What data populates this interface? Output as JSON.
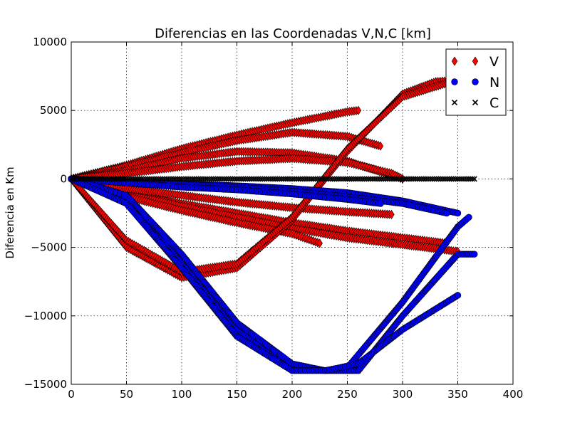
{
  "chart_data": {
    "type": "scatter",
    "title": "Diferencias en las Coordenadas V,N,C [km]",
    "xlabel": "",
    "ylabel": "Diferencia en Km",
    "xlim": [
      0,
      400
    ],
    "ylim": [
      -15000,
      10000
    ],
    "xticks": [
      0,
      50,
      100,
      150,
      200,
      250,
      300,
      350,
      400
    ],
    "yticks": [
      -15000,
      -10000,
      -5000,
      0,
      5000,
      10000
    ],
    "xtick_labels": [
      "0",
      "50",
      "100",
      "150",
      "200",
      "250",
      "300",
      "350",
      "400"
    ],
    "ytick_labels": [
      "−15000",
      "−10000",
      "−5000",
      "0",
      "5000",
      "10000"
    ],
    "grid": true,
    "legend_position": "top-right",
    "series": [
      {
        "name": "V",
        "marker": "diamond",
        "color": "#ff0000",
        "traces": [
          {
            "x": [
              0,
              50,
              100,
              150,
              200,
              250,
              260
            ],
            "y": [
              0,
              1000,
              2200,
              3200,
              4100,
              4900,
              5000
            ]
          },
          {
            "x": [
              0,
              50,
              100,
              150,
              200,
              250,
              280
            ],
            "y": [
              0,
              900,
              1900,
              2800,
              3400,
              3100,
              2400
            ]
          },
          {
            "x": [
              0,
              50,
              100,
              150,
              200,
              250,
              300
            ],
            "y": [
              0,
              600,
              1500,
              2000,
              1900,
              1300,
              0
            ]
          },
          {
            "x": [
              0,
              50,
              100,
              150,
              200,
              250,
              290,
              300
            ],
            "y": [
              0,
              400,
              900,
              1300,
              1500,
              1200,
              400,
              0
            ]
          },
          {
            "x": [
              0,
              50,
              100,
              150,
              200,
              250,
              300,
              340
            ],
            "y": [
              0,
              -900,
              -1800,
              -2500,
              -3200,
              -3800,
              -4300,
              -4700
            ]
          },
          {
            "x": [
              0,
              50,
              100,
              150,
              200,
              250,
              300,
              350
            ],
            "y": [
              0,
              -1100,
              -2000,
              -2800,
              -3600,
              -4300,
              -4800,
              -5300
            ]
          },
          {
            "x": [
              0,
              50,
              100,
              150,
              200,
              250,
              290
            ],
            "y": [
              0,
              -700,
              -1200,
              -1700,
              -2100,
              -2400,
              -2600
            ]
          },
          {
            "x": [
              0,
              50,
              100,
              150,
              200,
              225
            ],
            "y": [
              0,
              -1300,
              -2300,
              -3200,
              -4000,
              -4700
            ]
          },
          {
            "x": [
              0,
              50,
              100,
              150,
              200,
              250,
              300,
              330,
              350
            ],
            "y": [
              0,
              -5000,
              -7200,
              -6500,
              -3000,
              2000,
              6200,
              7100,
              7200
            ]
          },
          {
            "x": [
              0,
              50,
              100,
              150,
              200,
              250,
              300,
              340
            ],
            "y": [
              0,
              -4500,
              -6800,
              -6200,
              -2800,
              2200,
              6000,
              7000
            ]
          }
        ]
      },
      {
        "name": "N",
        "marker": "circle",
        "color": "#0000ff",
        "traces": [
          {
            "x": [
              0,
              50,
              100,
              150,
              200,
              250,
              300,
              350
            ],
            "y": [
              0,
              -200,
              -350,
              -500,
              -700,
              -1000,
              -1600,
              -2500
            ]
          },
          {
            "x": [
              0,
              50,
              100,
              150,
              200,
              250,
              300,
              340
            ],
            "y": [
              0,
              -200,
              -400,
              -600,
              -900,
              -1300,
              -1800,
              -2500
            ]
          },
          {
            "x": [
              0,
              50,
              100,
              150,
              200,
              250,
              280
            ],
            "y": [
              0,
              -300,
              -600,
              -800,
              -1100,
              -1500,
              -1800
            ]
          },
          {
            "x": [
              0,
              50,
              100,
              150,
              200,
              230,
              250,
              300,
              350,
              360
            ],
            "y": [
              0,
              -1500,
              -6000,
              -11000,
              -13800,
              -14000,
              -13800,
              -9000,
              -3500,
              -2800
            ]
          },
          {
            "x": [
              0,
              50,
              100,
              150,
              200,
              230,
              260,
              300,
              350,
              365
            ],
            "y": [
              0,
              -1200,
              -5500,
              -10500,
              -13500,
              -14000,
              -14000,
              -10000,
              -5500,
              -5500
            ]
          },
          {
            "x": [
              0,
              50,
              100,
              150,
              200,
              230,
              260,
              300,
              350
            ],
            "y": [
              0,
              -1800,
              -6500,
              -11500,
              -14000,
              -14000,
              -13500,
              -11000,
              -8500
            ]
          }
        ]
      },
      {
        "name": "C",
        "marker": "x",
        "color": "#000000",
        "traces": [
          {
            "x": [
              0,
              50,
              100,
              150,
              200,
              250,
              300,
              350,
              365
            ],
            "y": [
              0,
              0,
              0,
              0,
              0,
              0,
              0,
              0,
              0
            ]
          }
        ]
      }
    ]
  }
}
